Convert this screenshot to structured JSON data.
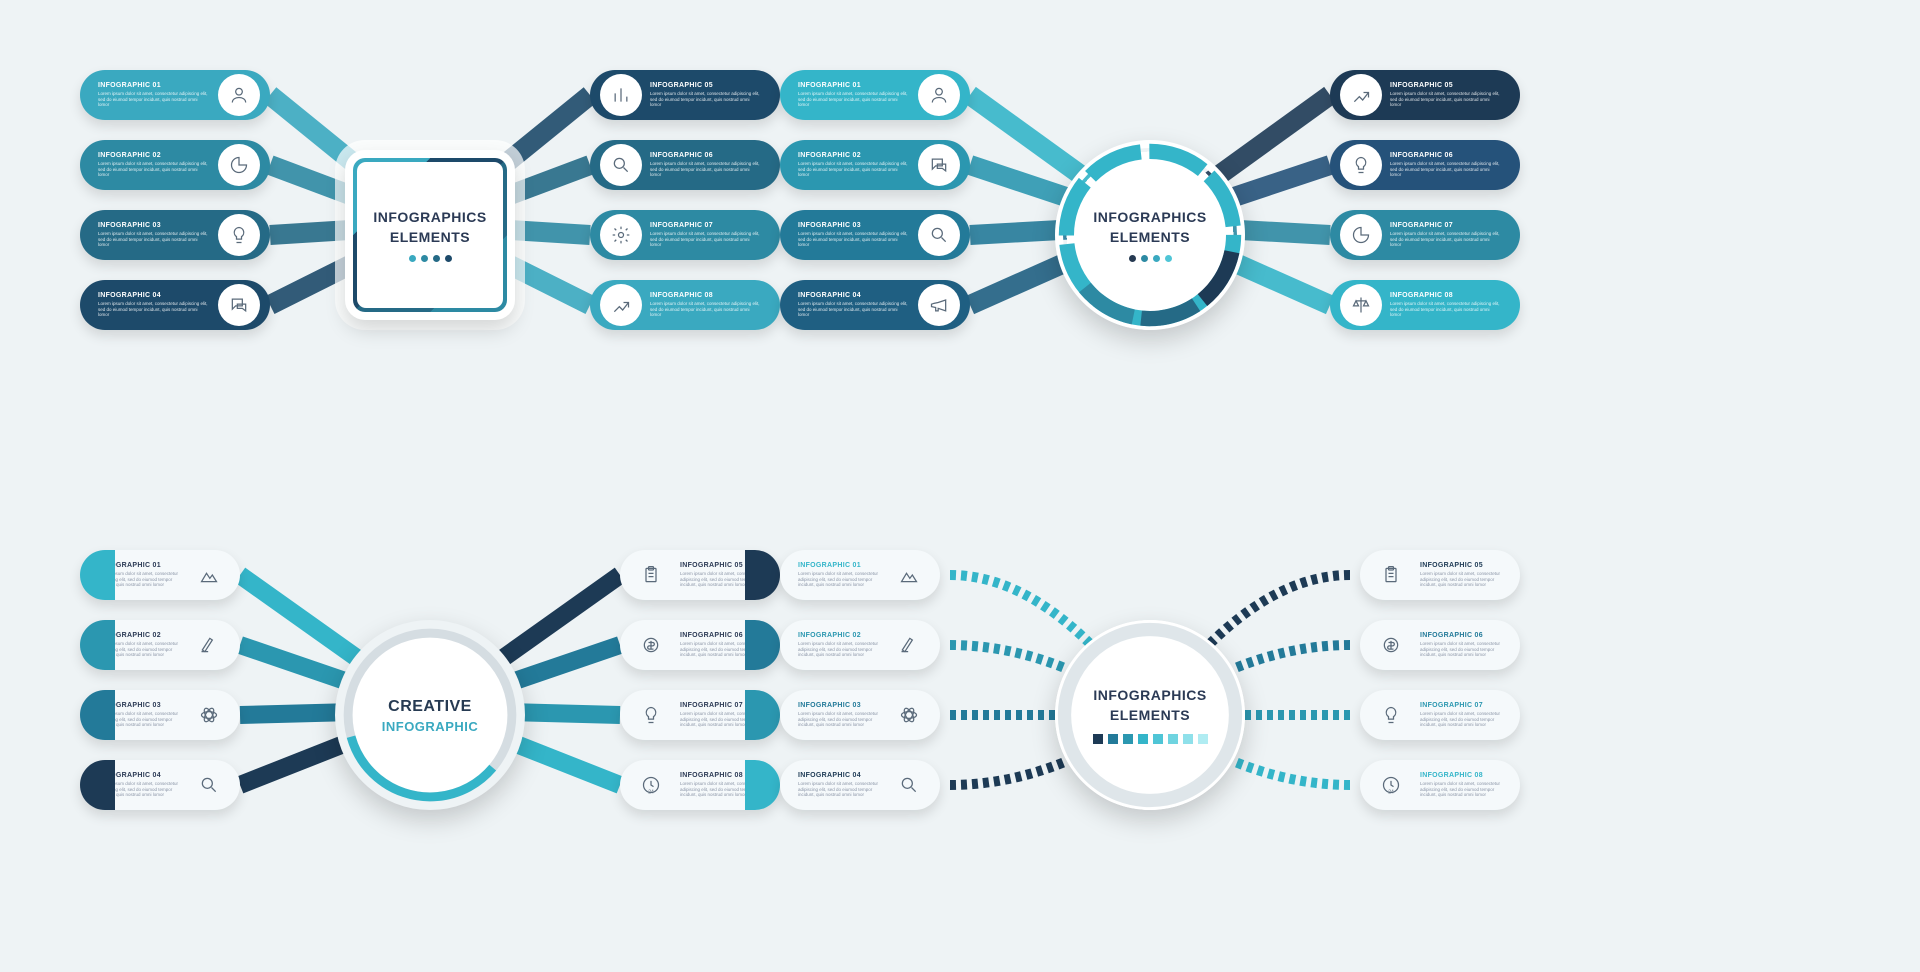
{
  "colors": {
    "bg": "#eef3f5",
    "c1": "#3aa9c0",
    "c2": "#2d8aa3",
    "c3": "#256a86",
    "c4": "#1d4a6a",
    "c5": "#4fc5d6",
    "c6": "#2fb0c8",
    "c7": "#237a99",
    "c8": "#1a3c5a",
    "navy": "#263a52",
    "teal": "#34b5c9",
    "white": "#ffffff",
    "light": "#f5f9fb",
    "gray": "#dfe6ea"
  },
  "placeholder": "Lorem ipsum dolor sit amet, consectetur adipiscing elit, sed do eiumod tempor incidunt, quis nostrud omni lomor",
  "diagrams": {
    "d1": {
      "center": {
        "title": "INFOGRAPHICS",
        "subtitle": "ELEMENTS",
        "shape": "square"
      },
      "dot_colors": [
        "#3aa9c0",
        "#2d8aa3",
        "#256a86",
        "#1d4a6a"
      ],
      "left": [
        {
          "num": "01",
          "color": "#3aa9c0",
          "icon": "user"
        },
        {
          "num": "02",
          "color": "#2d8aa3",
          "icon": "pie"
        },
        {
          "num": "03",
          "color": "#256a86",
          "icon": "bulb"
        },
        {
          "num": "04",
          "color": "#1d4a6a",
          "icon": "chat"
        }
      ],
      "right": [
        {
          "num": "05",
          "color": "#1d4a6a",
          "icon": "bars"
        },
        {
          "num": "06",
          "color": "#256a86",
          "icon": "search"
        },
        {
          "num": "07",
          "color": "#2d8aa3",
          "icon": "gear"
        },
        {
          "num": "08",
          "color": "#3aa9c0",
          "icon": "growth"
        }
      ]
    },
    "d2": {
      "center": {
        "title": "INFOGRAPHICS",
        "subtitle": "ELEMENTS",
        "shape": "circle"
      },
      "dot_colors": [
        "#263a52",
        "#2d8aa3",
        "#3aa9c0",
        "#4fc5d6"
      ],
      "left": [
        {
          "num": "01",
          "color": "#34b5c9",
          "icon": "user"
        },
        {
          "num": "02",
          "color": "#2b97b0",
          "icon": "chat"
        },
        {
          "num": "03",
          "color": "#237a99",
          "icon": "search"
        },
        {
          "num": "04",
          "color": "#1f5f82",
          "icon": "horn"
        }
      ],
      "right": [
        {
          "num": "05",
          "color": "#1d3a55",
          "icon": "growth"
        },
        {
          "num": "06",
          "color": "#25527a",
          "icon": "bulb"
        },
        {
          "num": "07",
          "color": "#2d8aa3",
          "icon": "pie"
        },
        {
          "num": "08",
          "color": "#34b5c9",
          "icon": "scale"
        }
      ]
    },
    "d3": {
      "center": {
        "title": "CREATIVE",
        "subtitle": "INFOGRAPHIC",
        "shape": "circle"
      },
      "left": [
        {
          "num": "01",
          "end_color": "#34b5c9",
          "icon": "mountain"
        },
        {
          "num": "02",
          "end_color": "#2b97b0",
          "icon": "scope"
        },
        {
          "num": "03",
          "end_color": "#237a99",
          "icon": "atom"
        },
        {
          "num": "04",
          "end_color": "#1d3a55",
          "icon": "search"
        }
      ],
      "right": [
        {
          "num": "05",
          "end_color": "#1d3a55",
          "icon": "clipboard"
        },
        {
          "num": "06",
          "end_color": "#237a99",
          "icon": "coin"
        },
        {
          "num": "07",
          "end_color": "#2b97b0",
          "icon": "bulb"
        },
        {
          "num": "08",
          "end_color": "#34b5c9",
          "icon": "clock24"
        }
      ]
    },
    "d4": {
      "center": {
        "title": "INFOGRAPHICS",
        "subtitle": "ELEMENTS",
        "shape": "circle"
      },
      "sq_colors": [
        "#1d3a55",
        "#237a99",
        "#2b97b0",
        "#34b5c9",
        "#4fc5d6",
        "#6fd4e0",
        "#8fe0ea",
        "#b0ecf2"
      ],
      "left": [
        {
          "num": "01",
          "title_color": "#34b5c9",
          "icon": "mountain"
        },
        {
          "num": "02",
          "title_color": "#2b97b0",
          "icon": "scope"
        },
        {
          "num": "03",
          "title_color": "#237a99",
          "icon": "atom"
        },
        {
          "num": "04",
          "title_color": "#1d3a55",
          "icon": "search"
        }
      ],
      "right": [
        {
          "num": "05",
          "title_color": "#1d3a55",
          "icon": "clipboard"
        },
        {
          "num": "06",
          "title_color": "#237a99",
          "icon": "coin"
        },
        {
          "num": "07",
          "title_color": "#2b97b0",
          "icon": "bulb"
        },
        {
          "num": "08",
          "title_color": "#34b5c9",
          "icon": "clock24"
        }
      ]
    }
  }
}
